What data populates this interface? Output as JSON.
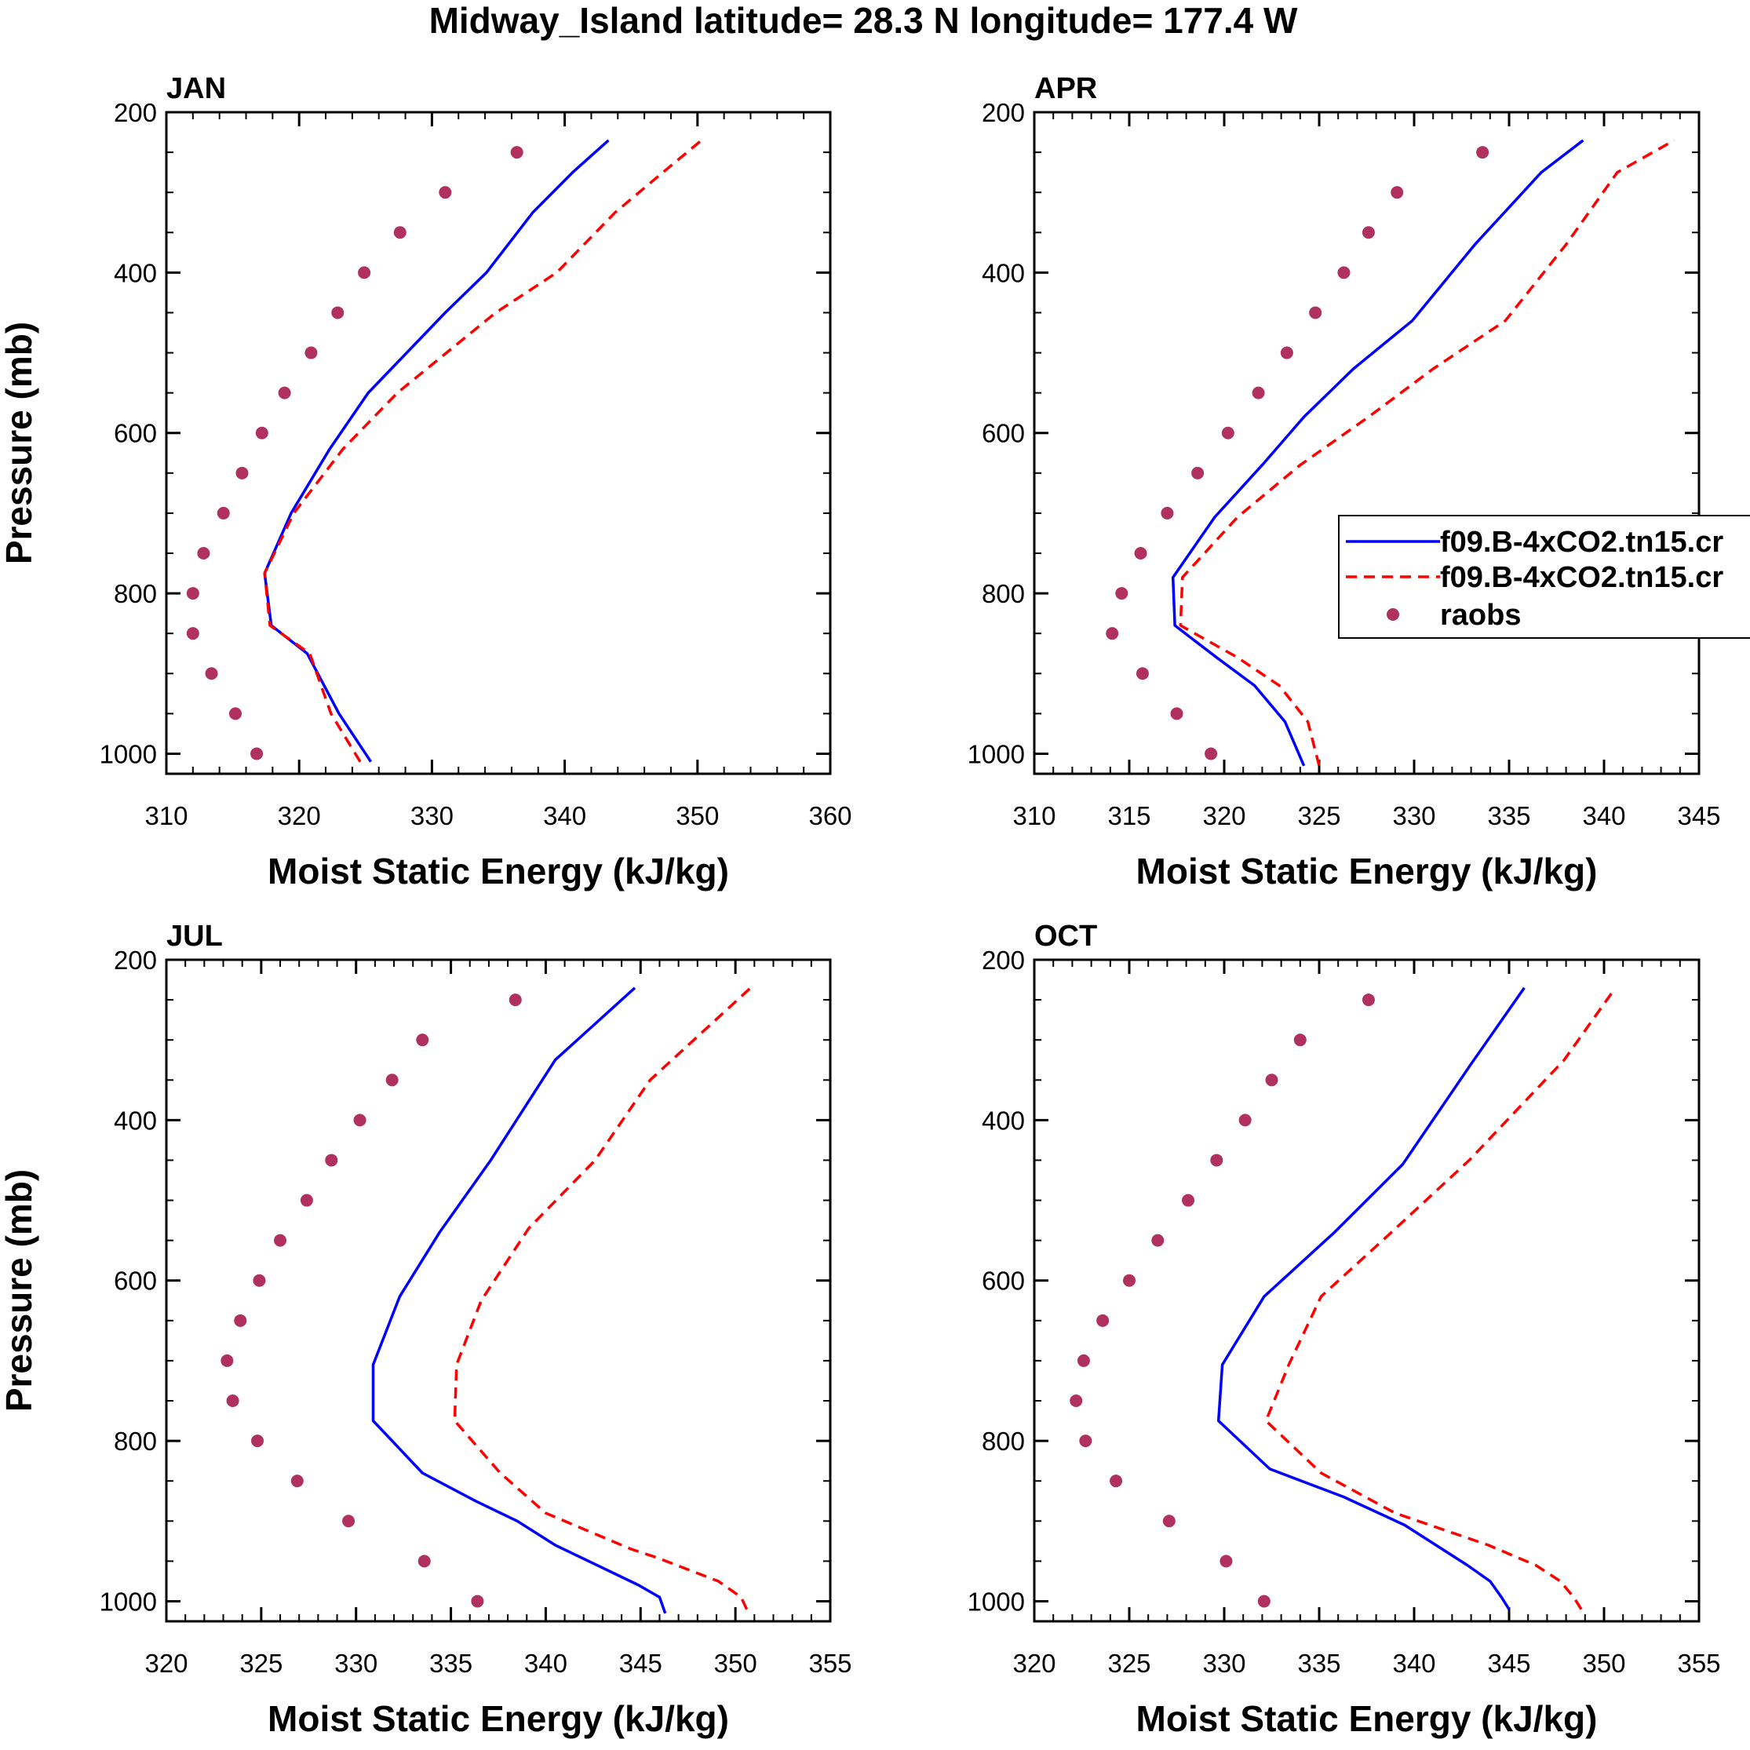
{
  "figure": {
    "title": "Midway_Island  latitude= 28.3 N longitude= 177.4 W"
  },
  "legend": {
    "entries": [
      {
        "label": "f09.B-4xCO2.tn15.cr",
        "style": "solid-line",
        "color": "#0000ff"
      },
      {
        "label": "f09.B-4xCO2.tn15.cr",
        "style": "dashed-line",
        "color": "#ff0000"
      },
      {
        "label": "raobs",
        "style": "marker",
        "color": "#b03060"
      }
    ]
  },
  "colors": {
    "model_solid": "#0000ff",
    "model_dashed": "#ff0000",
    "raobs": "#b03060",
    "axes": "#000000"
  },
  "chart_data": [
    {
      "type": "line",
      "title": "JAN",
      "xlabel": "Moist Static Energy (kJ/kg)",
      "ylabel": "Pressure (mb)",
      "xlim": [
        310,
        360
      ],
      "ylim": [
        200,
        1025
      ],
      "xticks": [
        310,
        320,
        330,
        340,
        350,
        360
      ],
      "yticks": [
        200,
        400,
        600,
        800,
        1000
      ],
      "series": [
        {
          "name": "f09.B-4xCO2.tn15.cr",
          "style": "solid",
          "x": [
            325.4,
            323.0,
            320.6,
            317.9,
            317.4,
            319.4,
            322.3,
            325.2,
            328.1,
            331.0,
            334.1,
            337.6,
            340.6,
            343.3
          ],
          "y": [
            1010,
            950,
            875,
            840,
            775,
            700,
            620,
            550,
            500,
            450,
            400,
            325,
            275,
            235
          ]
        },
        {
          "name": "f09.B-4xCO2.tn15.cr",
          "style": "dashed",
          "x": [
            324.6,
            322.4,
            320.8,
            317.8,
            317.4,
            319.6,
            323.3,
            327.4,
            331.1,
            334.8,
            339.4,
            343.8,
            347.4,
            350.3
          ],
          "y": [
            1010,
            950,
            875,
            840,
            775,
            700,
            620,
            550,
            500,
            450,
            400,
            325,
            275,
            235
          ]
        },
        {
          "name": "raobs",
          "style": "marker",
          "x": [
            316.8,
            315.2,
            313.4,
            312.0,
            312.0,
            312.8,
            314.3,
            315.7,
            317.2,
            318.9,
            320.9,
            322.9,
            324.9,
            327.6,
            331.0,
            336.4
          ],
          "y": [
            1000,
            950,
            900,
            850,
            800,
            750,
            700,
            650,
            600,
            550,
            500,
            450,
            400,
            350,
            300,
            250
          ]
        }
      ]
    },
    {
      "type": "line",
      "title": "APR",
      "xlabel": "Moist Static Energy (kJ/kg)",
      "ylabel": "",
      "xlim": [
        310,
        345
      ],
      "ylim": [
        200,
        1025
      ],
      "xticks": [
        310,
        315,
        320,
        325,
        330,
        335,
        340,
        345
      ],
      "yticks": [
        200,
        400,
        600,
        800,
        1000
      ],
      "series": [
        {
          "name": "f09.B-4xCO2.tn15.cr",
          "style": "solid",
          "x": [
            324.2,
            323.2,
            321.6,
            319.6,
            317.4,
            317.3,
            319.5,
            322.0,
            324.2,
            326.8,
            329.9,
            333.2,
            336.7,
            338.9
          ],
          "y": [
            1015,
            960,
            915,
            880,
            840,
            780,
            705,
            640,
            580,
            520,
            460,
            365,
            275,
            235
          ]
        },
        {
          "name": "f09.B-4xCO2.tn15.cr",
          "style": "dashed",
          "x": [
            325.0,
            324.4,
            322.9,
            320.7,
            317.7,
            317.8,
            320.7,
            324.0,
            327.6,
            331.0,
            334.8,
            338.0,
            340.7,
            343.7
          ],
          "y": [
            1015,
            960,
            915,
            880,
            840,
            780,
            705,
            640,
            580,
            520,
            460,
            365,
            275,
            235
          ]
        },
        {
          "name": "raobs",
          "style": "marker",
          "x": [
            319.3,
            317.5,
            315.7,
            314.1,
            314.6,
            315.6,
            317.0,
            318.6,
            320.2,
            321.8,
            323.3,
            324.8,
            326.3,
            327.6,
            329.1,
            333.6
          ],
          "y": [
            1000,
            950,
            900,
            850,
            800,
            750,
            700,
            650,
            600,
            550,
            500,
            450,
            400,
            350,
            300,
            250
          ]
        }
      ]
    },
    {
      "type": "line",
      "title": "JUL",
      "xlabel": "Moist Static Energy (kJ/kg)",
      "ylabel": "Pressure (mb)",
      "xlim": [
        320,
        355
      ],
      "ylim": [
        200,
        1025
      ],
      "xticks": [
        320,
        325,
        330,
        335,
        340,
        345,
        350,
        355
      ],
      "yticks": [
        200,
        400,
        600,
        800,
        1000
      ],
      "series": [
        {
          "name": "f09.B-4xCO2.tn15.cr",
          "style": "solid",
          "x": [
            346.3,
            346.0,
            344.9,
            340.5,
            338.5,
            336.3,
            333.5,
            330.9,
            330.9,
            332.3,
            334.4,
            337.1,
            340.5,
            344.7
          ],
          "y": [
            1015,
            995,
            980,
            930,
            900,
            875,
            840,
            775,
            705,
            620,
            540,
            450,
            325,
            235
          ]
        },
        {
          "name": "f09.B-4xCO2.tn15.cr",
          "style": "dashed",
          "x": [
            350.6,
            350.3,
            349.1,
            345.8,
            344.5,
            340.0,
            337.6,
            335.2,
            335.3,
            336.6,
            339.1,
            342.6,
            345.5,
            350.8
          ],
          "y": [
            1010,
            995,
            975,
            945,
            935,
            890,
            840,
            775,
            705,
            625,
            535,
            450,
            350,
            235
          ]
        },
        {
          "name": "raobs",
          "style": "marker",
          "x": [
            336.4,
            333.6,
            329.6,
            326.9,
            324.8,
            323.5,
            323.2,
            323.9,
            324.9,
            326.0,
            327.4,
            328.7,
            330.2,
            331.9,
            333.5,
            338.4
          ],
          "y": [
            1000,
            950,
            900,
            850,
            800,
            750,
            700,
            650,
            600,
            550,
            500,
            450,
            400,
            350,
            300,
            250
          ]
        }
      ]
    },
    {
      "type": "line",
      "title": "OCT",
      "xlabel": "Moist Static Energy (kJ/kg)",
      "ylabel": "",
      "xlim": [
        320,
        355
      ],
      "ylim": [
        200,
        1025
      ],
      "xticks": [
        320,
        325,
        330,
        335,
        340,
        345,
        350,
        355
      ],
      "yticks": [
        200,
        400,
        600,
        800,
        1000
      ],
      "series": [
        {
          "name": "f09.B-4xCO2.tn15.cr",
          "style": "solid",
          "x": [
            345.0,
            344.6,
            344.0,
            342.8,
            339.5,
            336.3,
            332.4,
            329.7,
            329.9,
            332.1,
            335.8,
            339.4,
            343.0,
            345.8
          ],
          "y": [
            1010,
            995,
            975,
            955,
            905,
            870,
            835,
            775,
            705,
            620,
            540,
            455,
            330,
            235
          ]
        },
        {
          "name": "f09.B-4xCO2.tn15.cr",
          "style": "dashed",
          "x": [
            348.8,
            348.4,
            347.7,
            346.4,
            343.9,
            339.0,
            335.1,
            332.2,
            333.4,
            335.1,
            338.8,
            342.9,
            347.9,
            350.6
          ],
          "y": [
            1010,
            995,
            975,
            955,
            930,
            890,
            840,
            775,
            705,
            620,
            540,
            450,
            325,
            235
          ]
        },
        {
          "name": "raobs",
          "style": "marker",
          "x": [
            332.1,
            330.1,
            327.1,
            324.3,
            322.7,
            322.2,
            322.6,
            323.6,
            325.0,
            326.5,
            328.1,
            329.6,
            331.1,
            332.5,
            334.0,
            337.6
          ],
          "y": [
            1000,
            950,
            900,
            850,
            800,
            750,
            700,
            650,
            600,
            550,
            500,
            450,
            400,
            350,
            300,
            250
          ]
        }
      ]
    }
  ]
}
